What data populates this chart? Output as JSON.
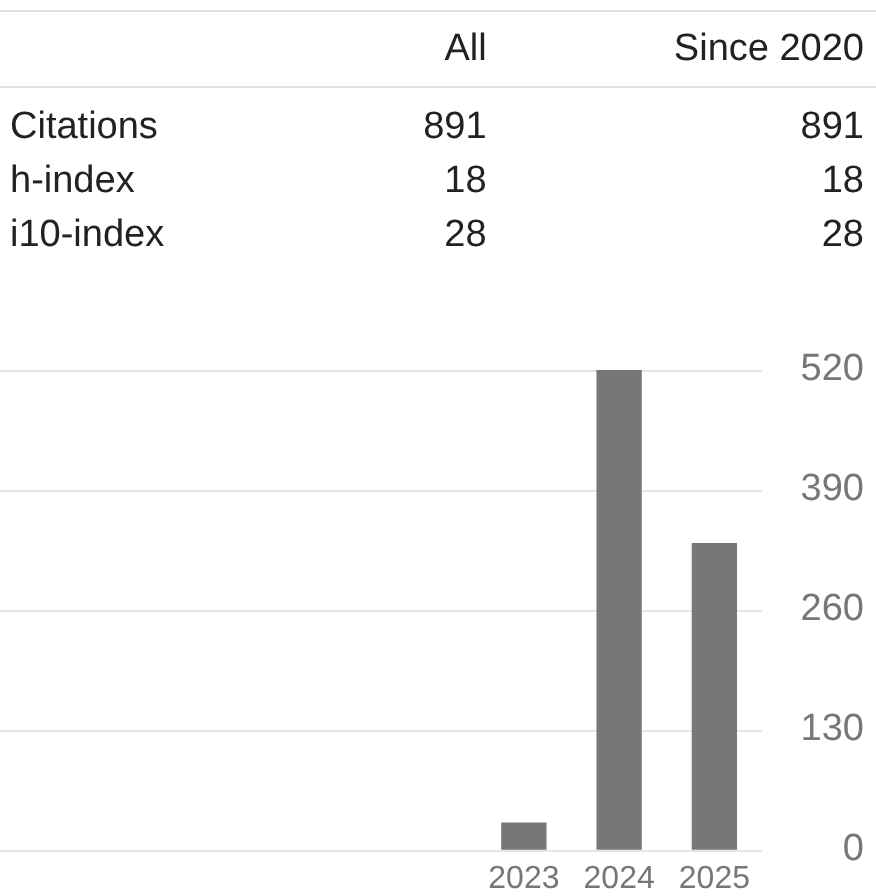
{
  "chart_data": [
    {
      "type": "other",
      "categories": [
        "Citations",
        "h-index",
        "i10-index"
      ],
      "series": [
        {
          "name": "All",
          "values": [
            891,
            18,
            28
          ]
        },
        {
          "name": "Since 2020",
          "values": [
            891,
            18,
            28
          ]
        }
      ],
      "data_labels": true
    },
    {
      "type": "bar",
      "categories": [
        null,
        null,
        null,
        null,
        null,
        "2023",
        "2024",
        "2025"
      ],
      "values": [
        null,
        null,
        null,
        null,
        null,
        29,
        520,
        332
      ],
      "color": "#777777",
      "ylim": [
        0,
        520
      ],
      "yticks": [
        0,
        130,
        260,
        390,
        520
      ],
      "grid": "y"
    }
  ]
}
